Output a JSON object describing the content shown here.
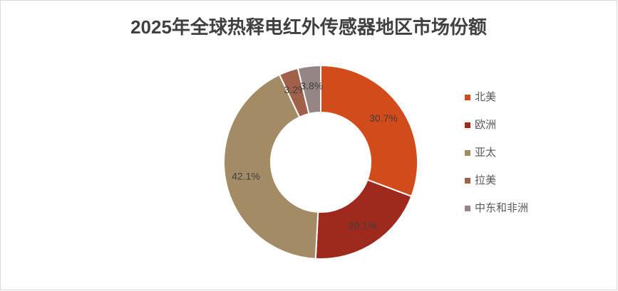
{
  "chart_data": {
    "type": "donut",
    "title": "2025年全球热释电红外传感器地区市场份额",
    "categories": [
      "北美",
      "欧洲",
      "亚太",
      "拉美",
      "中东和非洲"
    ],
    "values": [
      30.7,
      20.1,
      42.1,
      3.2,
      3.8
    ],
    "value_labels": [
      "30.7%",
      "20.1%",
      "42.1%",
      "3.2%",
      "3.8%"
    ],
    "colors": [
      "#d24b1a",
      "#9e2a1e",
      "#a38b65",
      "#a0604a",
      "#958585"
    ],
    "legend": "right"
  }
}
